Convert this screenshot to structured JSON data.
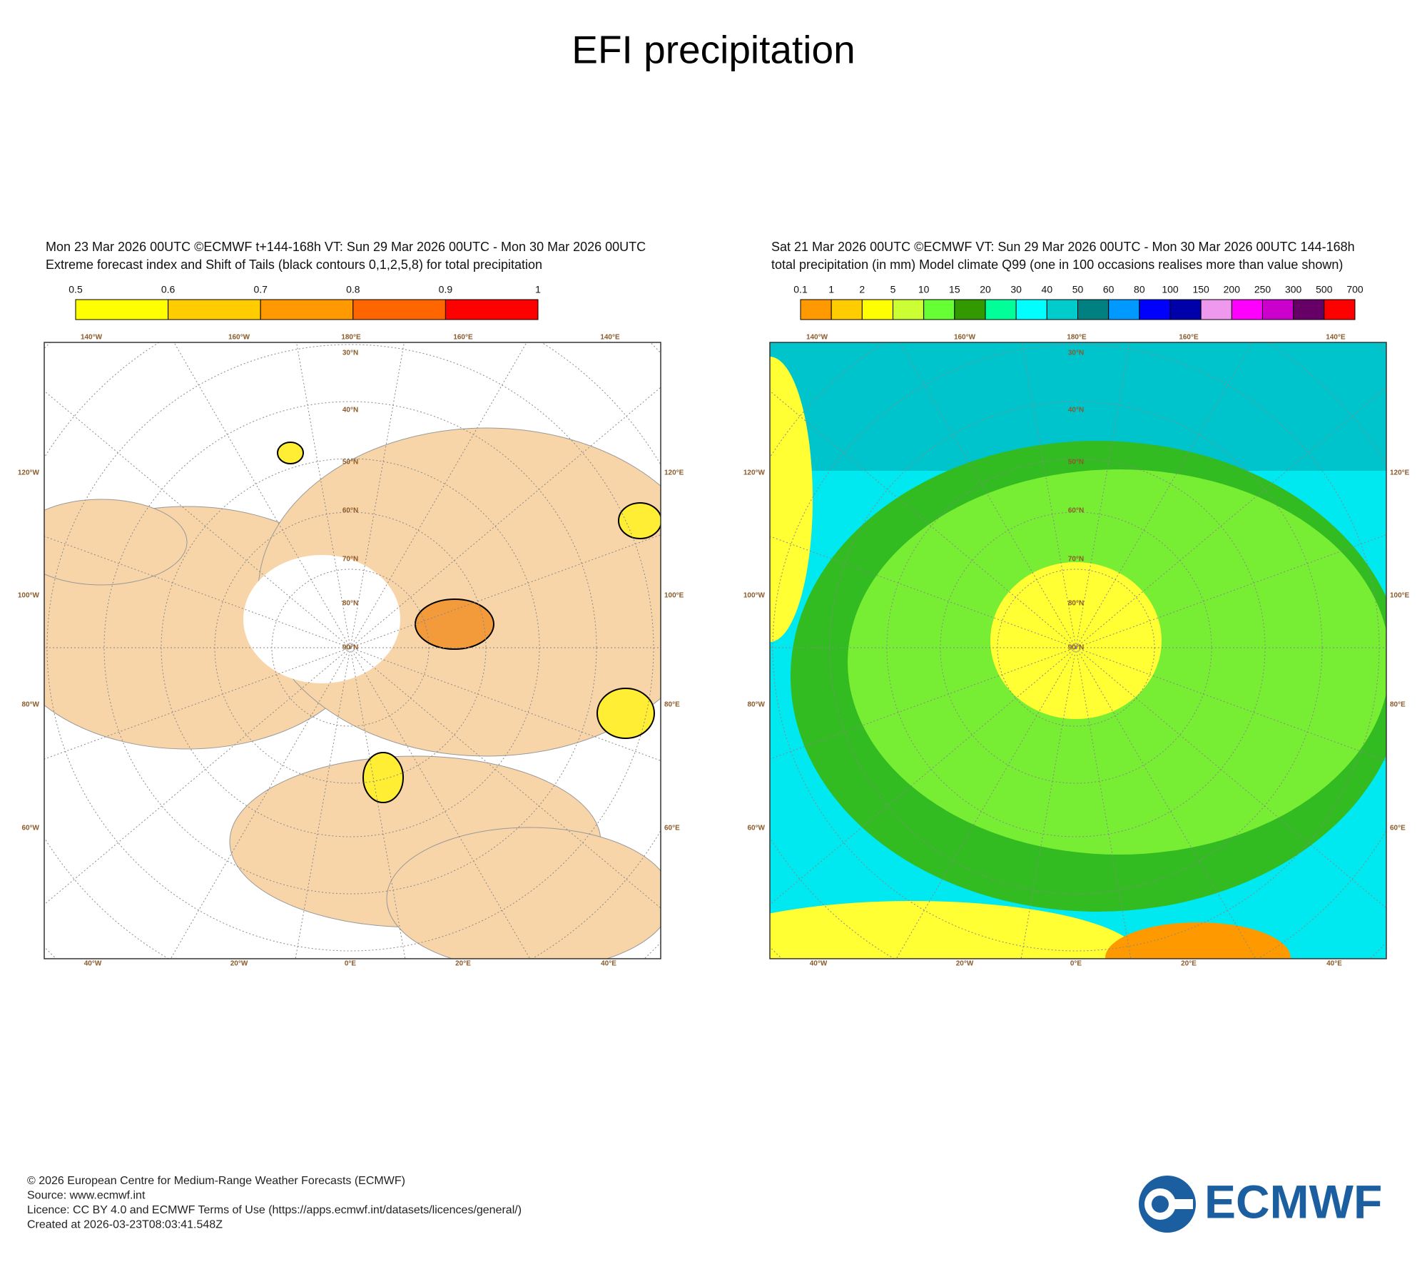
{
  "title": "EFI precipitation",
  "panels": [
    {
      "header": [
        "Mon 23 Mar 2026 00UTC ©ECMWF t+144-168h  VT: Sun 29 Mar 2026 00UTC - Mon 30 Mar 2026 00UTC",
        "Extreme forecast index and Shift of Tails (black contours 0,1,2,5,8) for total precipitation"
      ],
      "colorbar": {
        "labels": [
          0.5,
          0.6,
          0.7,
          0.8,
          0.9,
          1
        ],
        "colors": [
          "#ffff00",
          "#ffcc00",
          "#ff9900",
          "#ff6600",
          "#ff0000"
        ]
      },
      "lon_top": [
        "140°W",
        "160°W",
        "180°E",
        "160°E",
        "140°E"
      ],
      "lon_bottom": [
        "40°W",
        "20°W",
        "0°E",
        "20°E",
        "40°E"
      ],
      "lat_left": [
        "120°W",
        "100°W",
        "80°W",
        "60°W"
      ],
      "lat_right": [
        "120°E",
        "100°E",
        "80°E",
        "60°E"
      ],
      "lat_rings": [
        "30°N",
        "40°N",
        "50°N",
        "60°N",
        "70°N",
        "80°N",
        "90°N"
      ]
    },
    {
      "header": [
        "Sat 21 Mar 2026 00UTC ©ECMWF VT: Sun 29 Mar 2026 00UTC - Mon 30 Mar 2026 00UTC   144-168h",
        "total precipitation (in mm)  Model climate Q99 (one in 100 occasions realises more than value shown)"
      ],
      "colorbar": {
        "labels": [
          0.1,
          1,
          2,
          5,
          10,
          15,
          20,
          30,
          40,
          50,
          60,
          80,
          100,
          150,
          200,
          250,
          300,
          500,
          700
        ],
        "colors": [
          "#ff9900",
          "#ffcc00",
          "#ffff00",
          "#ccff33",
          "#66ff33",
          "#339900",
          "#00ff99",
          "#00ffff",
          "#00cccc",
          "#008080",
          "#0099ff",
          "#0000ff",
          "#0000aa",
          "#ee99ee",
          "#ff00ff",
          "#cc00cc",
          "#660066",
          "#ff0000"
        ]
      },
      "lon_top": [
        "140°W",
        "160°W",
        "180°E",
        "160°E",
        "140°E"
      ],
      "lon_bottom": [
        "40°W",
        "20°W",
        "0°E",
        "20°E",
        "40°E"
      ],
      "lat_left": [
        "120°W",
        "100°W",
        "80°W",
        "60°W"
      ],
      "lat_right": [
        "120°E",
        "100°E",
        "80°E",
        "60°E"
      ],
      "lat_rings": [
        "30°N",
        "40°N",
        "50°N",
        "60°N",
        "70°N",
        "80°N",
        "90°N"
      ]
    }
  ],
  "footer": [
    "© 2026 European Centre for Medium-Range Weather Forecasts (ECMWF)",
    "Source: www.ecmwf.int",
    "Licence: CC BY 4.0 and ECMWF Terms of Use (https://apps.ecmwf.int/datasets/licences/general/)",
    "Created at 2026-03-23T08:03:41.548Z"
  ],
  "logo": "ECMWF"
}
